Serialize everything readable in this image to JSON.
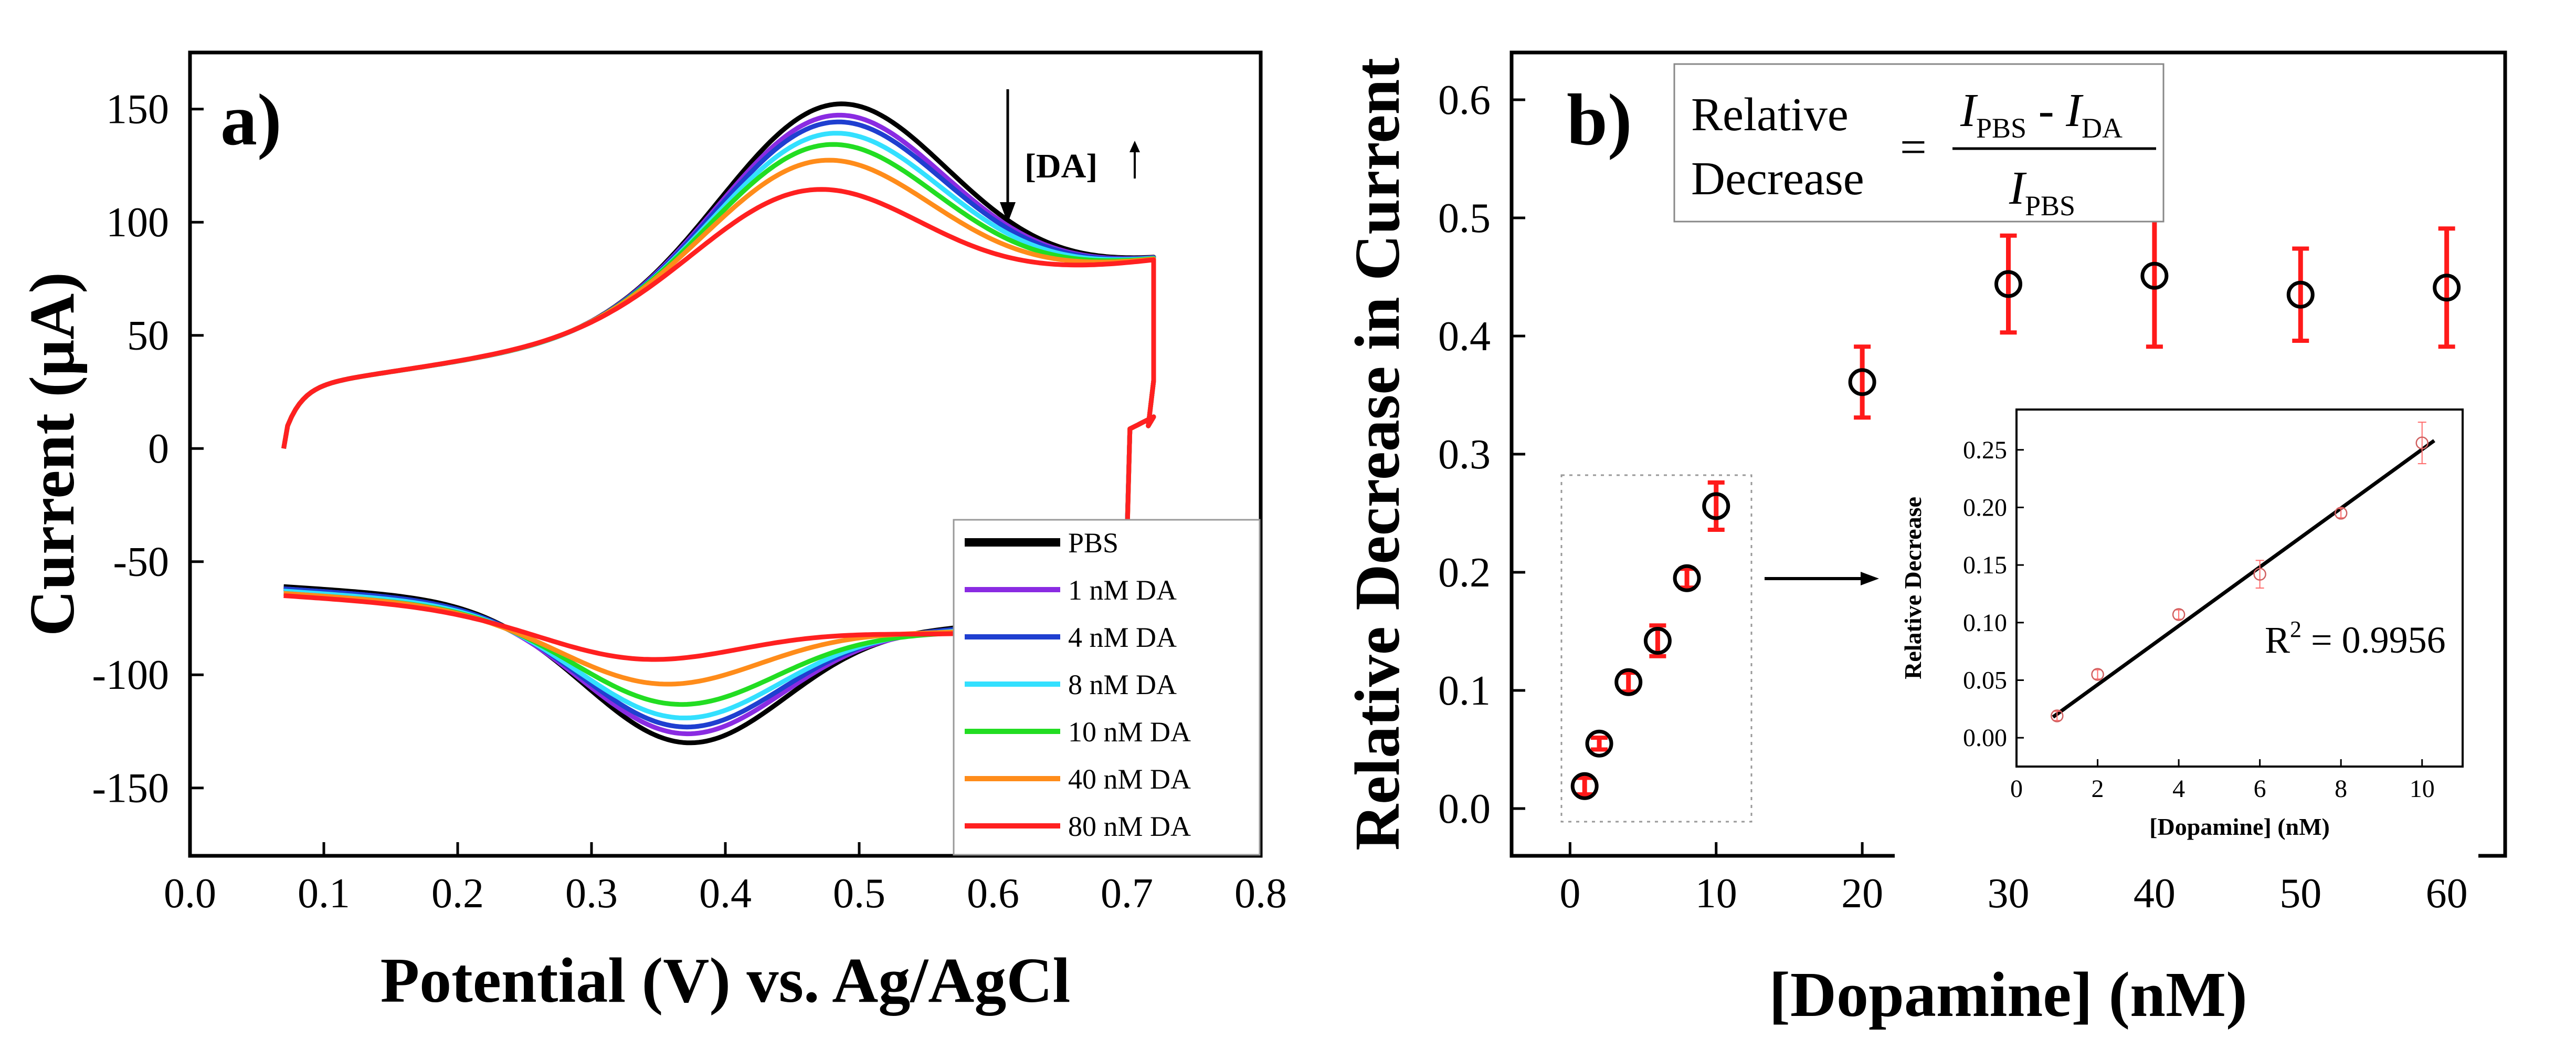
{
  "chart_data": [
    {
      "panel": "a)",
      "type": "line",
      "title": "",
      "xlabel": "Potential (V) vs. Ag/AgCl",
      "ylabel": "Current (μA)",
      "xlim": [
        0.0,
        0.8
      ],
      "ylim": [
        -180,
        175
      ],
      "xticks": [
        "0.0",
        "0.1",
        "0.2",
        "0.3",
        "0.4",
        "0.5",
        "0.6",
        "0.7",
        "0.8"
      ],
      "yticks": [
        "-150",
        "-100",
        "-50",
        "0",
        "50",
        "100",
        "150"
      ],
      "annotation": "[DA]",
      "series": [
        {
          "name": "PBS",
          "color": "#000000",
          "anodic_peak": [
            0.48,
            152
          ],
          "cathodic_peak": [
            0.37,
            -130
          ],
          "upper_start": 15,
          "upper_end": 58,
          "lower_start": -59,
          "lower_end": 14
        },
        {
          "name": "1 nM DA",
          "color": "#8a2be2",
          "anodic_peak": [
            0.478,
            147
          ],
          "cathodic_peak": [
            0.368,
            -126
          ],
          "upper_start": 15,
          "upper_end": 58,
          "lower_start": -60,
          "lower_end": 14
        },
        {
          "name": "4 nM DA",
          "color": "#1f3fd0",
          "anodic_peak": [
            0.477,
            144
          ],
          "cathodic_peak": [
            0.367,
            -123
          ],
          "upper_start": 15,
          "upper_end": 58,
          "lower_start": -60,
          "lower_end": 14
        },
        {
          "name": "8 nM DA",
          "color": "#33e0ff",
          "anodic_peak": [
            0.475,
            139
          ],
          "cathodic_peak": [
            0.365,
            -119
          ],
          "upper_start": 15,
          "upper_end": 58,
          "lower_start": -61,
          "lower_end": 14
        },
        {
          "name": "10 nM DA",
          "color": "#22dd22",
          "anodic_peak": [
            0.472,
            134
          ],
          "cathodic_peak": [
            0.362,
            -113
          ],
          "upper_start": 15,
          "upper_end": 58,
          "lower_start": -62,
          "lower_end": 14
        },
        {
          "name": "40 nM DA",
          "color": "#ff8c1a",
          "anodic_peak": [
            0.468,
            127
          ],
          "cathodic_peak": [
            0.35,
            -104
          ],
          "upper_start": 15,
          "upper_end": 57,
          "lower_start": -62,
          "lower_end": 14
        },
        {
          "name": "80 nM DA",
          "color": "#ff2020",
          "anodic_peak": [
            0.46,
            114
          ],
          "cathodic_peak": [
            0.335,
            -93
          ],
          "upper_start": 15,
          "upper_end": 55,
          "lower_start": -63,
          "lower_end": 14
        }
      ]
    },
    {
      "panel": "b)",
      "type": "scatter",
      "title": "",
      "xlabel": "[Dopamine] (nM)",
      "ylabel": "Relative Decrease in Current",
      "xlim": [
        -4,
        64
      ],
      "ylim": [
        -0.04,
        0.64
      ],
      "xticks": [
        "0",
        "10",
        "20",
        "30",
        "40",
        "50",
        "60"
      ],
      "yticks": [
        "0.0",
        "0.1",
        "0.2",
        "0.3",
        "0.4",
        "0.5",
        "0.6"
      ],
      "x": [
        1,
        2,
        4,
        6,
        8,
        10,
        20,
        30,
        40,
        50,
        60
      ],
      "y": [
        0.019,
        0.055,
        0.107,
        0.142,
        0.195,
        0.256,
        0.361,
        0.444,
        0.451,
        0.435,
        0.441
      ],
      "err": [
        0.007,
        0.005,
        0.008,
        0.013,
        0.008,
        0.02,
        0.03,
        0.041,
        0.06,
        0.039,
        0.05
      ],
      "formula": {
        "lhs_top": "Relative",
        "lhs_bottom": "Decrease",
        "equals": "=",
        "num_I1": "I",
        "num_sub1": "PBS",
        "num_minus": " - ",
        "num_I2": "I",
        "num_sub2": "DA",
        "den_I": "I",
        "den_sub": "PBS"
      }
    },
    {
      "panel": "inset",
      "type": "scatter",
      "title": "",
      "xlabel": "[Dopamine] (nM)",
      "ylabel": "Relative Decrease",
      "xlim": [
        0,
        11
      ],
      "ylim": [
        -0.025,
        0.285
      ],
      "xticks": [
        "0",
        "2",
        "4",
        "6",
        "8",
        "10"
      ],
      "yticks": [
        "0.00",
        "0.05",
        "0.10",
        "0.15",
        "0.20",
        "0.25"
      ],
      "x": [
        1,
        2,
        4,
        6,
        8,
        10
      ],
      "y": [
        0.019,
        0.055,
        0.107,
        0.142,
        0.195,
        0.256
      ],
      "err": [
        0.004,
        0.004,
        0.004,
        0.012,
        0.004,
        0.018
      ],
      "fit": {
        "x": [
          0.9,
          10.3
        ],
        "y": [
          0.018,
          0.258
        ]
      },
      "r_squared": {
        "label": "R",
        "sup": "2",
        "value": " = 0.9956"
      }
    }
  ]
}
